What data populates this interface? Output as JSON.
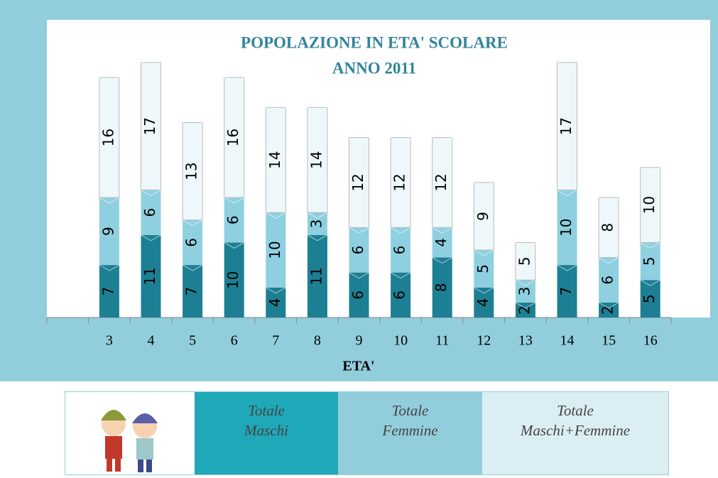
{
  "chart_data": {
    "type": "bar",
    "stacked": true,
    "title": "POPOLAZIONE IN ETA' SCOLARE",
    "subtitle": "ANNO 2011",
    "x_label": "ETA'",
    "categories": [
      null,
      3,
      4,
      5,
      6,
      7,
      8,
      9,
      10,
      11,
      12,
      13,
      14,
      15,
      16
    ],
    "series": [
      {
        "name": "Totale Maschi",
        "color": "#1d7f93",
        "values": [
          null,
          7,
          11,
          7,
          10,
          4,
          11,
          6,
          6,
          8,
          4,
          2,
          7,
          2,
          5
        ]
      },
      {
        "name": "Totale Femmine",
        "color": "#8fd0e0",
        "values": [
          null,
          9,
          6,
          6,
          6,
          10,
          3,
          6,
          6,
          4,
          5,
          3,
          10,
          6,
          5
        ]
      },
      {
        "name": "Totale Maschi+Femmine",
        "color": "#eef7fa",
        "values": [
          null,
          16,
          17,
          13,
          16,
          14,
          14,
          12,
          12,
          12,
          9,
          5,
          17,
          8,
          10
        ]
      }
    ],
    "legend_colors": [
      "#1fa8b8",
      "#92cddc",
      "#daeef3"
    ]
  }
}
